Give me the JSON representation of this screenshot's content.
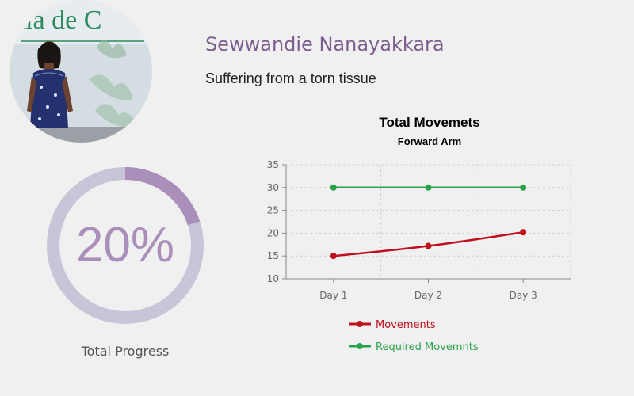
{
  "profile": {
    "name": "Sewwandie Nanayakkara",
    "condition": "Suffering from a torn tissue",
    "photo_banner_text": "ala de C"
  },
  "progress": {
    "value_text": "20%",
    "fraction": 0.2,
    "label": "Total Progress",
    "fill_color": "#a98fba",
    "track_color": "#c8c5d8"
  },
  "chart_data": {
    "type": "line",
    "title": "Total Movemets",
    "subtitle": "Forward Arm",
    "categories": [
      "Day 1",
      "Day 2",
      "Day 3"
    ],
    "ylim": [
      10,
      35
    ],
    "yticks": [
      10,
      15,
      20,
      25,
      30,
      35
    ],
    "grid": true,
    "legend_position": "bottom",
    "series": [
      {
        "name": "Movements",
        "values": [
          15,
          17.2,
          20.2
        ],
        "color": "#c0101e"
      },
      {
        "name": "Required Movemnts",
        "values": [
          30,
          30,
          30
        ],
        "color": "#2aa24a"
      }
    ]
  }
}
